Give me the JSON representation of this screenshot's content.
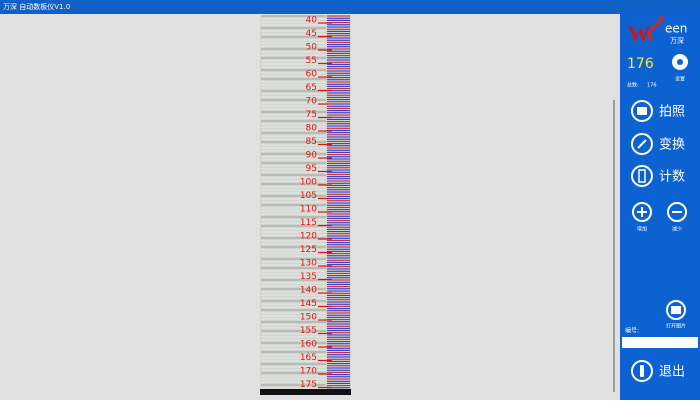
{
  "title_bar": {
    "title": "万深 自动数板仪V1.0"
  },
  "ruler": {
    "labels": [
      40,
      45,
      50,
      55,
      60,
      65,
      70,
      75,
      80,
      85,
      90,
      95,
      100,
      105,
      110,
      115,
      120,
      125,
      130,
      135,
      140,
      145,
      150,
      155,
      160,
      165,
      170,
      175
    ]
  },
  "side_panel": {
    "logo_mark": "W",
    "logo_word": "een",
    "logo_cn": "万深",
    "count": "176",
    "settings": "设置",
    "total_label": "总数:",
    "total": "176",
    "buttons": [
      {
        "label": "拍照"
      },
      {
        "label": "变换"
      },
      {
        "label": "计数"
      },
      {
        "label": "增加"
      },
      {
        "label": "减少"
      },
      {
        "label": "打开图片"
      },
      {
        "label": "退出"
      }
    ],
    "id_label": "编号:"
  }
}
